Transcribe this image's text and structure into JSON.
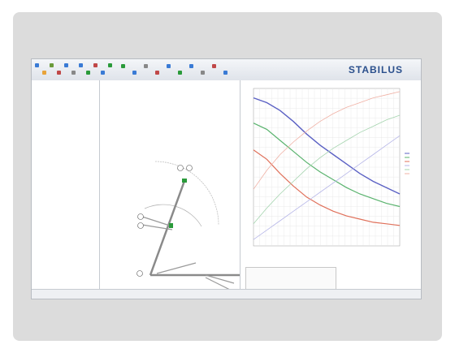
{
  "app": {
    "brand": "STABILUS"
  },
  "colors": {
    "card_bg": "#dcdcdc",
    "brand": "#2a4f8c",
    "series_blue": "#5b61c4",
    "series_green": "#5ab36e",
    "series_red": "#e0705a",
    "series_lightblue": "#b6b6e8",
    "series_lightgreen": "#a4d4ae",
    "series_lightred": "#f0b0a4",
    "mechanism": "#8a8a8a",
    "hinge_marker": "#2a9a3a"
  },
  "toolbar_icons": [
    "open-icon",
    "save-icon",
    "print-icon",
    "undo-icon",
    "redo-icon",
    "zoom-icon",
    "move-icon",
    "rotate-icon",
    "measure-icon",
    "settings-icon",
    "help-icon"
  ],
  "chart_data": {
    "type": "line",
    "series": [
      {
        "values": [
          0.94,
          0.91,
          0.86,
          0.79,
          0.71,
          0.64,
          0.58,
          0.52,
          0.46,
          0.41,
          0.37,
          0.33
        ]
      },
      {
        "values": [
          0.78,
          0.74,
          0.67,
          0.6,
          0.53,
          0.47,
          0.42,
          0.37,
          0.33,
          0.3,
          0.27,
          0.25
        ]
      },
      {
        "values": [
          0.61,
          0.55,
          0.46,
          0.38,
          0.31,
          0.26,
          0.22,
          0.19,
          0.17,
          0.15,
          0.14,
          0.13
        ]
      },
      {
        "values": [
          0.04,
          0.1,
          0.16,
          0.22,
          0.28,
          0.34,
          0.4,
          0.46,
          0.52,
          0.58,
          0.64,
          0.7
        ]
      },
      {
        "values": [
          0.14,
          0.24,
          0.33,
          0.41,
          0.49,
          0.56,
          0.62,
          0.67,
          0.72,
          0.76,
          0.8,
          0.83
        ]
      },
      {
        "values": [
          0.36,
          0.48,
          0.58,
          0.66,
          0.73,
          0.79,
          0.84,
          0.88,
          0.91,
          0.94,
          0.96,
          0.98
        ]
      }
    ],
    "grid": true,
    "legend": "right"
  }
}
